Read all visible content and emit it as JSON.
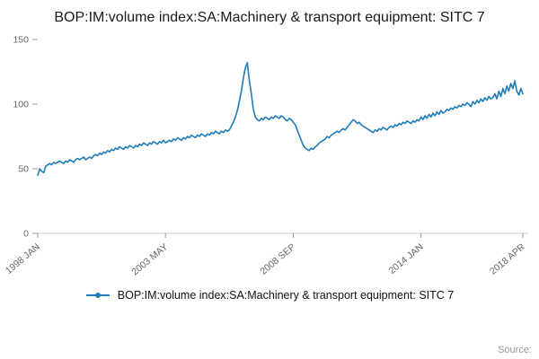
{
  "title": "BOP:IM:volume index:SA:Machinery & transport equipment: SITC 7",
  "legend": {
    "label": "BOP:IM:volume index:SA:Machinery & transport equipment: SITC 7"
  },
  "source_label": "Source:",
  "colors": {
    "line": "#1f7cb8",
    "tick_text": "#666666",
    "tick_mark": "#999999",
    "baseline": "#cccccc"
  },
  "chart_data": {
    "type": "line",
    "title": "BOP:IM:volume index:SA:Machinery & transport equipment: SITC 7",
    "xlabel": "",
    "ylabel": "",
    "ylim": [
      0,
      150
    ],
    "yticks": [
      0,
      50,
      100,
      150
    ],
    "grid": false,
    "legend_position": "bottom",
    "xticks": [
      {
        "label": "1998 JAN",
        "month_index": 0
      },
      {
        "label": "2003 MAY",
        "month_index": 64
      },
      {
        "label": "2008 SEP",
        "month_index": 128
      },
      {
        "label": "2014 JAN",
        "month_index": 192
      },
      {
        "label": "2018 APR",
        "month_index": 243
      }
    ],
    "x_start": "1998 JAN",
    "x_end": "2018 APR",
    "frequency": "monthly",
    "values": [
      45,
      50,
      48,
      47,
      52,
      53,
      54,
      53,
      55,
      54,
      55,
      56,
      55,
      54,
      56,
      55,
      57,
      56,
      55,
      57,
      58,
      57,
      58,
      59,
      57,
      58,
      59,
      58,
      60,
      61,
      60,
      62,
      61,
      63,
      62,
      64,
      63,
      65,
      64,
      66,
      65,
      67,
      66,
      65,
      67,
      66,
      68,
      67,
      66,
      68,
      67,
      69,
      68,
      70,
      69,
      68,
      70,
      69,
      71,
      70,
      69,
      71,
      70,
      72,
      70,
      71,
      72,
      71,
      73,
      72,
      74,
      73,
      72,
      74,
      73,
      75,
      74,
      76,
      75,
      74,
      76,
      75,
      77,
      76,
      75,
      77,
      76,
      78,
      77,
      79,
      78,
      77,
      79,
      78,
      80,
      79,
      80,
      83,
      86,
      90,
      95,
      102,
      110,
      120,
      128,
      132,
      118,
      108,
      96,
      90,
      88,
      87,
      89,
      88,
      90,
      89,
      88,
      90,
      89,
      91,
      90,
      89,
      91,
      90,
      88,
      87,
      89,
      88,
      86,
      84,
      80,
      76,
      72,
      68,
      66,
      65,
      64,
      66,
      65,
      67,
      68,
      70,
      71,
      72,
      73,
      75,
      74,
      76,
      77,
      78,
      79,
      78,
      80,
      81,
      80,
      82,
      84,
      86,
      88,
      87,
      85,
      86,
      84,
      83,
      82,
      81,
      80,
      79,
      78,
      80,
      79,
      81,
      80,
      82,
      81,
      80,
      82,
      83,
      82,
      84,
      83,
      85,
      84,
      86,
      85,
      87,
      86,
      85,
      87,
      86,
      88,
      87,
      90,
      88,
      91,
      89,
      92,
      90,
      93,
      91,
      94,
      92,
      95,
      93,
      94,
      96,
      95,
      97,
      96,
      98,
      97,
      99,
      98,
      100,
      99,
      101,
      100,
      98,
      102,
      100,
      103,
      101,
      104,
      102,
      105,
      103,
      106,
      104,
      105,
      108,
      104,
      110,
      106,
      112,
      108,
      114,
      110,
      116,
      112,
      118,
      110,
      107,
      112,
      108
    ]
  }
}
